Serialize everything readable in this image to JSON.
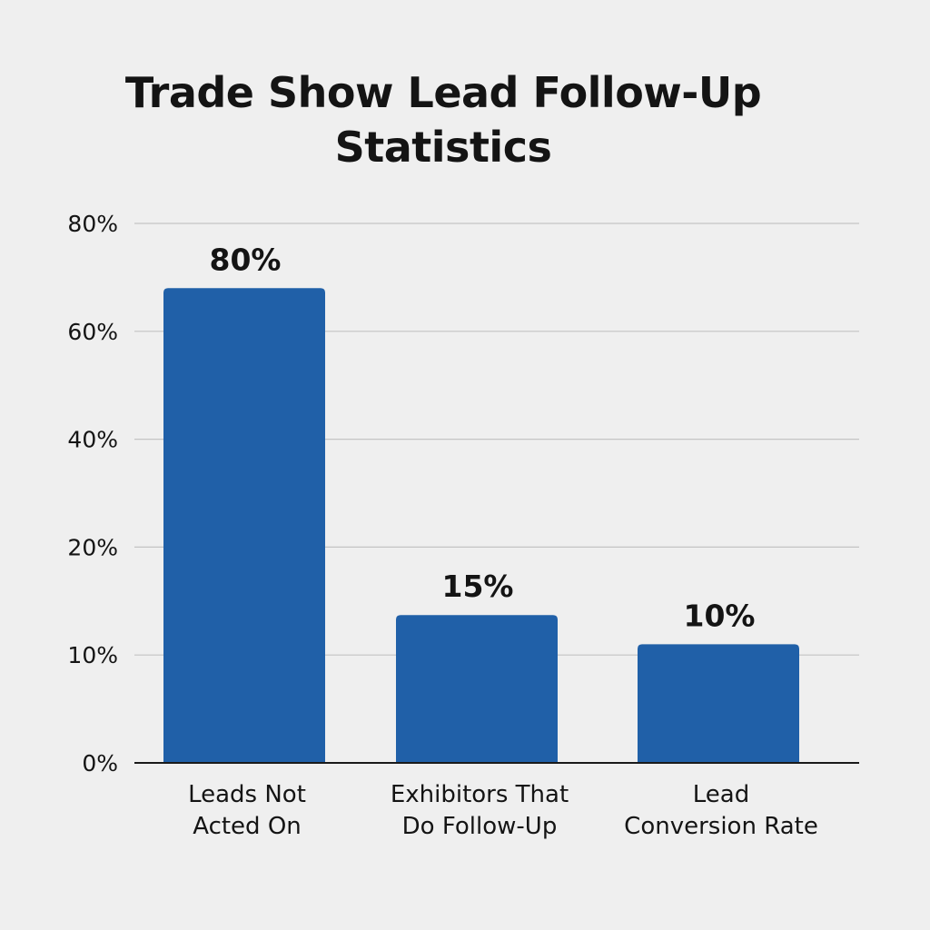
{
  "chart_data": {
    "type": "bar",
    "title": "Trade Show Lead Follow-Up Statistics",
    "title_lines": [
      "Trade Show Lead Follow-Up",
      "Statistics"
    ],
    "categories": [
      "Leads Not Acted On",
      "Exhibitors That Do Follow-Up",
      "Lead Conversion Rate"
    ],
    "category_lines": [
      [
        "Leads Not",
        "Acted On"
      ],
      [
        "Exhibitors That",
        "Do Follow-Up"
      ],
      [
        "Lead",
        "Conversion Rate"
      ]
    ],
    "values": [
      80,
      15,
      10
    ],
    "data_labels": [
      "80%",
      "15%",
      "10%"
    ],
    "y_ticks": [
      0,
      10,
      20,
      40,
      60,
      80
    ],
    "y_tick_labels": [
      "0%",
      "10%",
      "20%",
      "40%",
      "60%",
      "80%"
    ],
    "xlabel": "",
    "ylabel": "",
    "grid": true,
    "legend": "none",
    "bar_color": "#2060a8",
    "gridline_color": "#c4c4c4",
    "baseline_color": "#1a1a1a"
  }
}
